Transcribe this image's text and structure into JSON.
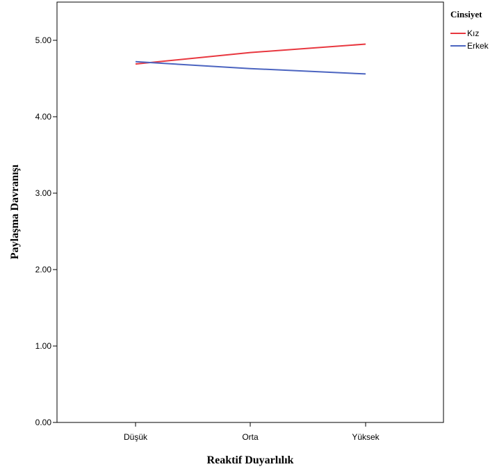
{
  "chart_data": {
    "type": "line",
    "xlabel": "Reaktif Duyarlılık",
    "ylabel": "Paylaşma Davranışı",
    "categories": [
      "Düşük",
      "Orta",
      "Yüksek"
    ],
    "ylim": [
      0,
      5.5
    ],
    "yticks": [
      "0.00",
      "1.00",
      "2.00",
      "3.00",
      "4.00",
      "5.00"
    ],
    "grid": false,
    "legend": {
      "title": "Cinsiyet",
      "placement": "right-top"
    },
    "series": [
      {
        "name": "Kız",
        "color": "#e8373f",
        "values": [
          4.69,
          4.84,
          4.95
        ]
      },
      {
        "name": "Erkek",
        "color": "#4b64c0",
        "values": [
          4.72,
          4.63,
          4.56
        ]
      }
    ]
  }
}
